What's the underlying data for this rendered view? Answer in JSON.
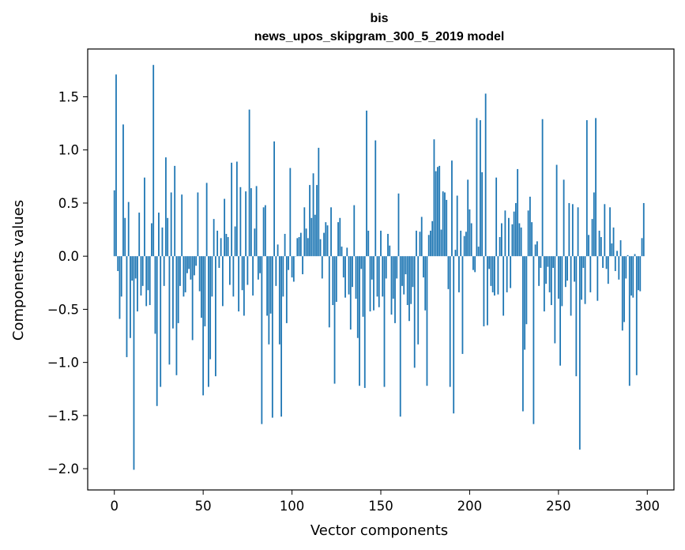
{
  "chart_data": {
    "type": "bar",
    "title": "bis",
    "subtitle": "news_upos_skipgram_300_5_2019 model",
    "xlabel": "Vector components",
    "ylabel": "Components values",
    "xlim": [
      -15,
      315
    ],
    "ylim": [
      -2.2,
      1.95
    ],
    "xticks": [
      0,
      50,
      100,
      150,
      200,
      250,
      300
    ],
    "yticks": [
      -2.0,
      -1.5,
      -1.0,
      -0.5,
      0.0,
      0.5,
      1.0,
      1.5
    ],
    "ytick_labels": [
      "−2.0",
      "−1.5",
      "−1.0",
      "−0.5",
      "0.0",
      "0.5",
      "1.0",
      "1.5"
    ],
    "bar_color": "#1f77b4",
    "grid": false,
    "legend": "none",
    "values": [
      0.62,
      1.71,
      -0.14,
      -0.59,
      -0.38,
      1.24,
      0.36,
      -0.95,
      0.51,
      -0.77,
      -0.23,
      -2.01,
      -0.21,
      -0.52,
      0.41,
      -0.37,
      -0.28,
      0.74,
      -0.47,
      -0.32,
      -0.46,
      0.31,
      1.8,
      -0.73,
      -1.41,
      0.41,
      -1.23,
      0.27,
      -0.28,
      0.93,
      0.36,
      -1.02,
      0.6,
      -0.68,
      0.85,
      -1.12,
      -0.63,
      -0.28,
      0.58,
      -0.38,
      -0.34,
      -0.16,
      -0.12,
      -0.22,
      -0.79,
      -0.18,
      -0.09,
      0.6,
      -0.33,
      -0.58,
      -1.31,
      -0.66,
      0.69,
      -1.23,
      -0.97,
      -0.38,
      0.35,
      -1.13,
      0.24,
      -0.11,
      0.17,
      -0.47,
      0.54,
      0.21,
      0.18,
      -0.27,
      0.88,
      -0.38,
      0.28,
      0.89,
      -0.52,
      0.65,
      -0.32,
      -0.56,
      0.61,
      -0.27,
      1.38,
      0.64,
      -0.37,
      0.26,
      0.66,
      -0.22,
      -0.16,
      -1.58,
      0.46,
      0.48,
      -0.56,
      -0.83,
      -0.54,
      -1.52,
      1.08,
      -0.28,
      0.11,
      -0.83,
      -1.51,
      -0.38,
      0.21,
      -0.63,
      -0.13,
      0.83,
      -0.2,
      -0.24,
      0.0,
      0.17,
      0.18,
      0.22,
      -0.17,
      0.46,
      0.26,
      0.17,
      0.67,
      0.36,
      0.78,
      0.39,
      0.67,
      1.02,
      0.16,
      -0.21,
      0.22,
      0.32,
      0.29,
      -0.67,
      0.46,
      -0.46,
      -1.2,
      -0.43,
      0.32,
      0.36,
      0.09,
      -0.2,
      -0.39,
      0.08,
      -0.36,
      -0.69,
      -0.29,
      0.48,
      -0.4,
      -0.77,
      -1.22,
      -0.12,
      -0.57,
      -1.24,
      1.37,
      0.24,
      -0.52,
      -0.22,
      -0.51,
      1.09,
      -0.38,
      -0.48,
      0.24,
      -0.38,
      -1.23,
      -0.21,
      0.21,
      0.1,
      -0.55,
      -0.4,
      -0.63,
      -0.21,
      0.59,
      -1.51,
      -0.28,
      -0.36,
      -0.17,
      -0.46,
      -0.61,
      -0.45,
      -0.29,
      -1.05,
      0.24,
      -0.83,
      0.23,
      0.37,
      -0.2,
      -0.51,
      -1.22,
      0.2,
      0.24,
      0.33,
      1.1,
      0.8,
      0.84,
      0.85,
      0.25,
      0.61,
      0.6,
      0.53,
      -0.31,
      -1.23,
      0.9,
      -1.48,
      0.06,
      0.57,
      -0.34,
      0.24,
      -0.92,
      0.19,
      0.23,
      0.72,
      0.44,
      0.31,
      -0.13,
      -0.15,
      1.3,
      0.09,
      1.28,
      0.79,
      -0.66,
      1.53,
      -0.65,
      -0.12,
      -0.28,
      -0.34,
      -0.37,
      0.74,
      -0.36,
      0.18,
      0.31,
      -0.56,
      0.43,
      -0.34,
      0.36,
      -0.3,
      0.3,
      0.42,
      0.5,
      0.82,
      0.31,
      0.27,
      -1.46,
      -0.88,
      -0.64,
      0.43,
      0.56,
      0.32,
      -1.58,
      0.11,
      0.14,
      -0.28,
      -0.11,
      1.29,
      -0.52,
      -0.26,
      -0.1,
      -0.34,
      -0.46,
      -0.11,
      -0.82,
      0.86,
      -0.4,
      -1.03,
      -0.47,
      0.72,
      -0.29,
      -0.23,
      0.5,
      -0.56,
      0.49,
      -0.24,
      -1.13,
      0.46,
      -1.82,
      -0.41,
      -0.11,
      -0.45,
      1.28,
      0.2,
      -0.34,
      0.35,
      0.6,
      1.3,
      -0.42,
      0.24,
      0.18,
      -0.11,
      0.49,
      -0.12,
      -0.26,
      0.46,
      0.12,
      0.27,
      -0.14,
      0.05,
      -0.22,
      0.15,
      -0.7,
      -0.62,
      -0.21,
      0.01,
      -1.22,
      -0.37,
      -0.39,
      0.02,
      -1.12,
      -0.32,
      -0.33,
      0.17,
      0.5
    ]
  }
}
